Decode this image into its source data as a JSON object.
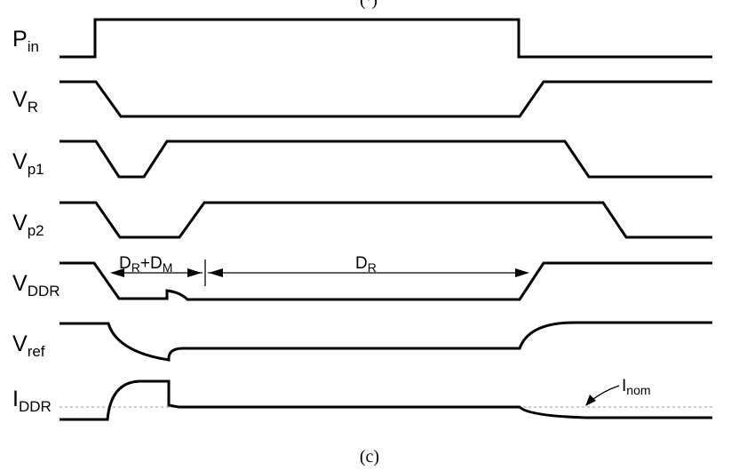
{
  "top_caption_fragment": "(·)",
  "caption": "(c)",
  "signals": [
    {
      "main": "P",
      "sub": "in"
    },
    {
      "main": "V",
      "sub": "R"
    },
    {
      "main": "V",
      "sub": "p1"
    },
    {
      "main": "V",
      "sub": "p2"
    },
    {
      "main": "V",
      "sub": "DDR"
    },
    {
      "main": "V",
      "sub": "ref"
    },
    {
      "main": "I",
      "sub": "DDR"
    }
  ],
  "annotations": {
    "dr_dm": {
      "d1": "D",
      "s1": "R",
      "plus": "+D",
      "s2": "M"
    },
    "dr": {
      "d": "D",
      "s": "R"
    },
    "inom": {
      "main": "I",
      "sub": "nom"
    }
  }
}
